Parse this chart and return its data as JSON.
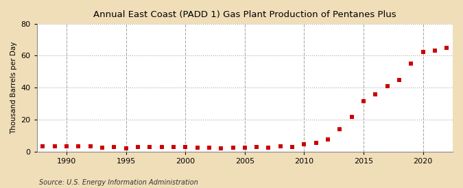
{
  "title": "Annual East Coast (PADD 1) Gas Plant Production of Pentanes Plus",
  "ylabel": "Thousand Barrels per Day",
  "source": "Source: U.S. Energy Information Administration",
  "figure_bg": "#f0deb8",
  "plot_bg": "#ffffff",
  "marker_color": "#cc0000",
  "grid_color": "#aaaaaa",
  "xlim": [
    1987.5,
    2022.5
  ],
  "ylim": [
    0,
    80
  ],
  "yticks": [
    0,
    20,
    40,
    60,
    80
  ],
  "xticks": [
    1990,
    1995,
    2000,
    2005,
    2010,
    2015,
    2020
  ],
  "years": [
    1988,
    1989,
    1990,
    1991,
    1992,
    1993,
    1994,
    1995,
    1996,
    1997,
    1998,
    1999,
    2000,
    2001,
    2002,
    2003,
    2004,
    2005,
    2006,
    2007,
    2008,
    2009,
    2010,
    2011,
    2012,
    2013,
    2014,
    2015,
    2016,
    2017,
    2018,
    2019,
    2020,
    2021,
    2022
  ],
  "values": [
    3.5,
    3.2,
    3.5,
    3.2,
    3.5,
    2.5,
    3.0,
    2.2,
    3.0,
    2.8,
    2.8,
    2.8,
    2.8,
    2.5,
    2.5,
    2.0,
    2.5,
    2.5,
    3.0,
    2.5,
    3.5,
    3.0,
    4.5,
    5.5,
    7.5,
    14.0,
    21.5,
    31.5,
    36.0,
    41.0,
    45.0,
    55.0,
    62.5,
    63.0,
    65.0
  ]
}
